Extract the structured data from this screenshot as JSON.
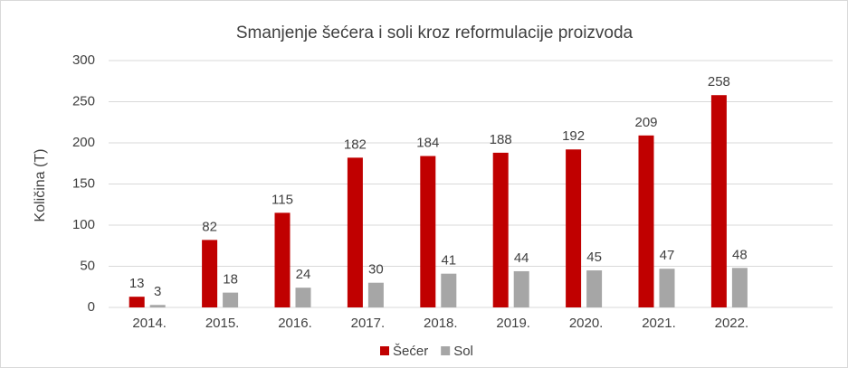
{
  "chart_data": {
    "type": "bar",
    "title": "Smanjenje šećera i soli kroz reformulacije proizvoda",
    "y_label": "Količina (T)",
    "categories": [
      "2014.",
      "2015.",
      "2016.",
      "2017.",
      "2018.",
      "2019.",
      "2020.",
      "2021.",
      "2022."
    ],
    "series": [
      {
        "name": "Šećer",
        "color": "#c00000",
        "values": [
          13,
          82,
          115,
          182,
          184,
          188,
          192,
          209,
          258
        ]
      },
      {
        "name": "Sol",
        "color": "#a6a6a6",
        "values": [
          3,
          18,
          24,
          30,
          41,
          44,
          45,
          47,
          48
        ]
      }
    ],
    "ylim": [
      0,
      300
    ],
    "yticks": [
      0,
      50,
      100,
      150,
      200,
      250,
      300
    ],
    "grid": true,
    "legend": "bottom"
  }
}
